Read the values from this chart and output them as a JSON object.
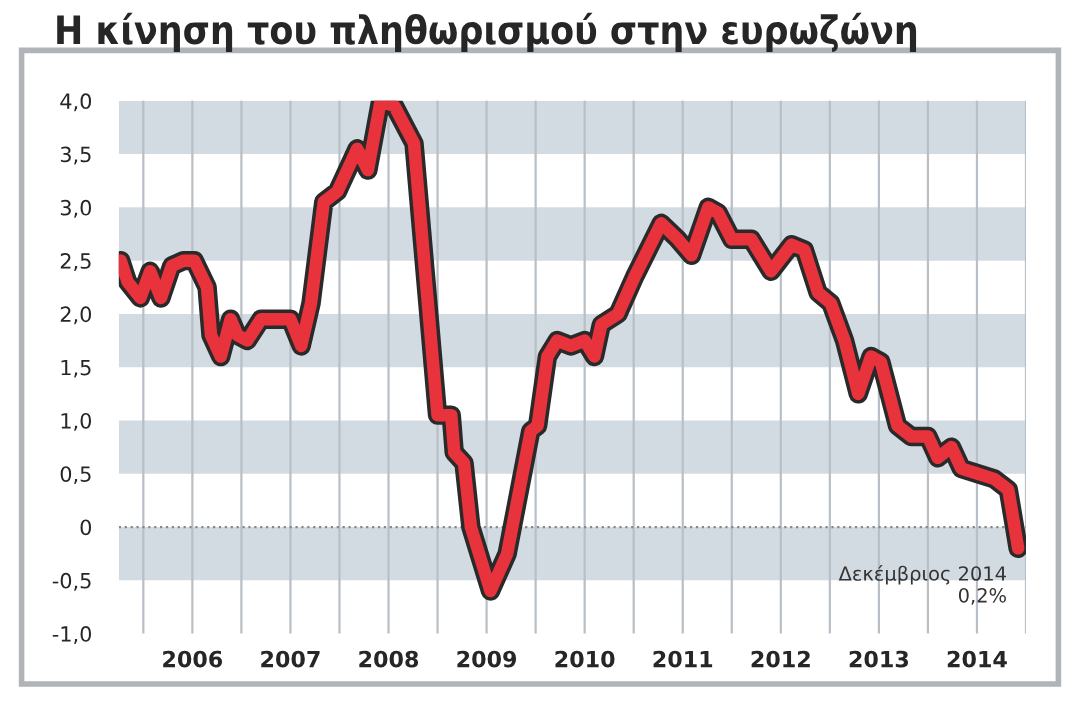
{
  "chart_data": {
    "type": "line",
    "title": "Η κίνηση του πληθωρισμού στην ευρωζώνη",
    "x": [
      2005.77,
      2005.84,
      2005.97,
      2006.07,
      2006.18,
      2006.29,
      2006.41,
      2006.52,
      2006.65,
      2006.69,
      2006.79,
      2006.89,
      2006.96,
      2007.06,
      2007.2,
      2007.5,
      2007.61,
      2007.71,
      2007.84,
      2007.98,
      2008.08,
      2008.18,
      2008.29,
      2008.42,
      2008.56,
      2008.76,
      2009.0,
      2009.14,
      2009.17,
      2009.27,
      2009.34,
      2009.54,
      2009.71,
      2009.95,
      2010.02,
      2010.12,
      2010.22,
      2010.36,
      2010.5,
      2010.6,
      2010.67,
      2010.84,
      2011.01,
      2011.28,
      2011.45,
      2011.59,
      2011.76,
      2011.86,
      2012.0,
      2012.2,
      2012.4,
      2012.61,
      2012.74,
      2012.88,
      2013.01,
      2013.15,
      2013.29,
      2013.42,
      2013.52,
      2013.69,
      2013.83,
      2014.0,
      2014.1,
      2014.24,
      2014.34,
      2014.51,
      2014.68,
      2014.82,
      2014.92
    ],
    "series": [
      {
        "color": "#e8323c",
        "values": [
          2.5,
          2.3,
          2.15,
          2.4,
          2.15,
          2.45,
          2.5,
          2.5,
          2.25,
          1.8,
          1.6,
          1.95,
          1.8,
          1.75,
          1.95,
          1.95,
          1.7,
          2.1,
          3.05,
          3.15,
          3.35,
          3.55,
          3.35,
          4.0,
          3.95,
          3.6,
          1.05,
          1.05,
          0.7,
          0.6,
          0.0,
          -0.6,
          -0.25,
          0.9,
          0.95,
          1.6,
          1.75,
          1.7,
          1.75,
          1.6,
          1.9,
          2.0,
          2.35,
          2.85,
          2.7,
          2.55,
          3.0,
          2.95,
          2.7,
          2.7,
          2.4,
          2.65,
          2.6,
          2.2,
          2.1,
          1.75,
          1.25,
          1.6,
          1.55,
          0.95,
          0.85,
          0.85,
          0.65,
          0.75,
          0.55,
          0.5,
          0.45,
          0.35,
          -0.2
        ]
      }
    ],
    "xlim": [
      2005.75,
      2015.0
    ],
    "xticks": [
      {
        "value": 2006,
        "label": null
      },
      {
        "value": 2006.5,
        "label": "2006"
      },
      {
        "value": 2007,
        "label": null
      },
      {
        "value": 2007.5,
        "label": "2007"
      },
      {
        "value": 2008,
        "label": null
      },
      {
        "value": 2008.5,
        "label": "2008"
      },
      {
        "value": 2009,
        "label": null
      },
      {
        "value": 2009.5,
        "label": "2009"
      },
      {
        "value": 2010,
        "label": null
      },
      {
        "value": 2010.5,
        "label": "2010"
      },
      {
        "value": 2011,
        "label": null
      },
      {
        "value": 2011.5,
        "label": "2011"
      },
      {
        "value": 2012,
        "label": null
      },
      {
        "value": 2012.5,
        "label": "2012"
      },
      {
        "value": 2013,
        "label": null
      },
      {
        "value": 2013.5,
        "label": "2013"
      },
      {
        "value": 2014,
        "label": null
      },
      {
        "value": 2014.5,
        "label": "2014"
      },
      {
        "value": 2015,
        "label": null
      }
    ],
    "ylim": [
      -1.0,
      4.0
    ],
    "yticks": [
      {
        "value": -1.0,
        "label": "-1,0"
      },
      {
        "value": -0.5,
        "label": "-0,5"
      },
      0,
      {
        "value": 0.5,
        "label": "0,5"
      },
      {
        "value": 1.0,
        "label": "1,0"
      },
      {
        "value": 1.5,
        "label": "1,5"
      },
      {
        "value": 2.0,
        "label": "2,0"
      },
      {
        "value": 2.5,
        "label": "2,5"
      },
      {
        "value": 3.0,
        "label": "3,0"
      },
      {
        "value": 3.5,
        "label": "3,5"
      },
      {
        "value": 4.0,
        "label": "4,0"
      }
    ],
    "grid": "x",
    "bands": [
      {
        "axis": "y",
        "from": 3.5,
        "to": 4.0,
        "color": "#d3dbe2"
      },
      {
        "axis": "y",
        "from": 2.5,
        "to": 3.0,
        "color": "#d3dbe2"
      },
      {
        "axis": "y",
        "from": 1.5,
        "to": 2.0,
        "color": "#d3dbe2"
      },
      {
        "axis": "y",
        "from": 0.5,
        "to": 1.0,
        "color": "#d3dbe2"
      },
      {
        "axis": "y",
        "from": -0.5,
        "to": 0.0,
        "color": "#d3dbe2"
      }
    ],
    "ref_lines": [
      {
        "axis": "y",
        "value": 0,
        "color": "#888888",
        "line_style": "dotted"
      }
    ],
    "annotations": [
      {
        "text": "Δεκέμβριος 2014\n0,2%",
        "x": 2014.92,
        "y": -0.2
      }
    ]
  }
}
